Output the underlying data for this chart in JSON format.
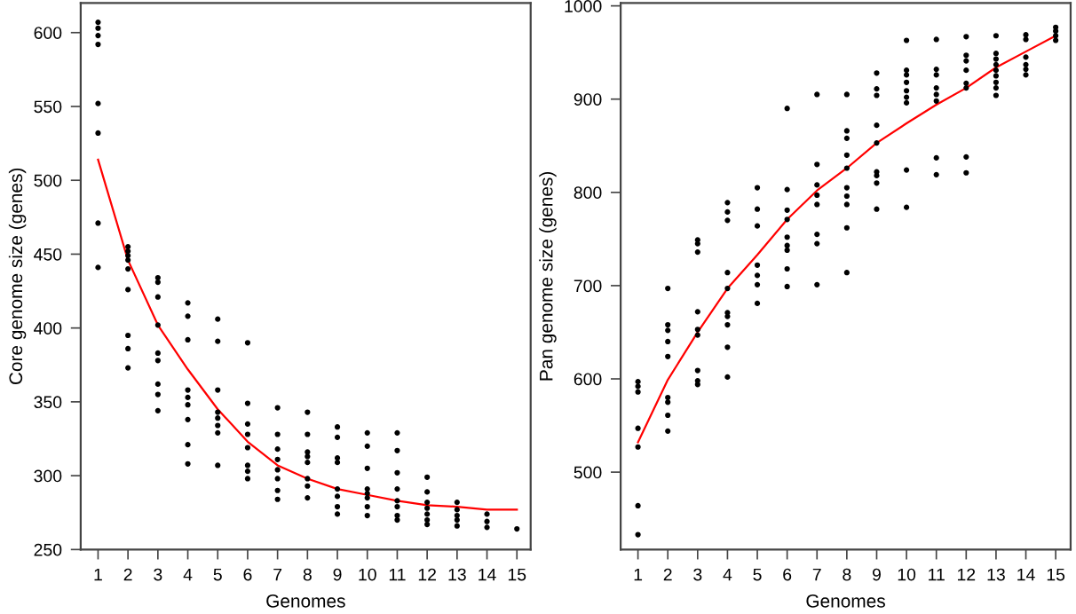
{
  "chart_data": [
    {
      "type": "scatter",
      "xlabel": "Genomes",
      "ylabel": "Core genome size (genes)",
      "xlim": [
        0.42,
        15.46
      ],
      "ylim": [
        250,
        620
      ],
      "xticks": [
        1,
        2,
        3,
        4,
        5,
        6,
        7,
        8,
        9,
        10,
        11,
        12,
        13,
        14,
        15
      ],
      "yticks": [
        250,
        300,
        350,
        400,
        450,
        500,
        550,
        600
      ],
      "grid": false,
      "legend": false,
      "marker": "circle",
      "series": [
        {
          "color": "#000000",
          "x": [
            1,
            1,
            1,
            1,
            1,
            1,
            1,
            1,
            2,
            2,
            2,
            2,
            2,
            2,
            2,
            2,
            2,
            3,
            3,
            3,
            3,
            3,
            3,
            3,
            3,
            3,
            4,
            4,
            4,
            4,
            4,
            4,
            4,
            4,
            4,
            5,
            5,
            5,
            5,
            5,
            5,
            5,
            5,
            6,
            6,
            6,
            6,
            6,
            6,
            6,
            6,
            7,
            7,
            7,
            7,
            7,
            7,
            7,
            7,
            8,
            8,
            8,
            8,
            8,
            8,
            8,
            8,
            9,
            9,
            9,
            9,
            9,
            9,
            9,
            9,
            10,
            10,
            10,
            10,
            10,
            10,
            10,
            10,
            11,
            11,
            11,
            11,
            11,
            11,
            11,
            11,
            12,
            12,
            12,
            12,
            12,
            12,
            12,
            13,
            13,
            13,
            13,
            13,
            14,
            14,
            14,
            15
          ],
          "values": [
            607,
            603,
            598,
            592,
            552,
            532,
            471,
            441,
            455,
            452,
            449,
            446,
            440,
            426,
            395,
            386,
            373,
            434,
            431,
            421,
            402,
            383,
            378,
            362,
            355,
            344,
            417,
            408,
            392,
            358,
            353,
            348,
            338,
            321,
            308,
            406,
            391,
            358,
            343,
            339,
            334,
            329,
            307,
            390,
            349,
            335,
            328,
            319,
            307,
            303,
            298,
            346,
            328,
            318,
            311,
            304,
            298,
            290,
            284,
            343,
            328,
            316,
            313,
            309,
            298,
            293,
            285,
            333,
            326,
            312,
            309,
            291,
            286,
            279,
            274,
            329,
            320,
            305,
            291,
            288,
            285,
            279,
            273,
            329,
            317,
            302,
            291,
            283,
            279,
            273,
            270,
            299,
            289,
            282,
            278,
            274,
            270,
            267,
            282,
            277,
            273,
            270,
            266,
            274,
            269,
            265,
            264
          ]
        },
        {
          "type": "line",
          "color": "#ff0000",
          "marker": "none",
          "x": [
            1,
            2,
            3,
            4,
            5,
            6,
            7,
            8,
            9,
            10,
            11,
            12,
            13,
            14,
            15
          ],
          "values": [
            514,
            446,
            402,
            372,
            345,
            323,
            307,
            298,
            291,
            287,
            283,
            280,
            279,
            277,
            277
          ]
        }
      ]
    },
    {
      "type": "scatter",
      "xlabel": "Genomes",
      "ylabel": "Pan genome size (genes)",
      "xlim": [
        0.42,
        15.5
      ],
      "ylim": [
        417,
        1003
      ],
      "xticks": [
        1,
        2,
        3,
        4,
        5,
        6,
        7,
        8,
        9,
        10,
        11,
        12,
        13,
        14,
        15
      ],
      "yticks": [
        500,
        600,
        700,
        800,
        900,
        1000
      ],
      "grid": false,
      "legend": false,
      "marker": "circle",
      "series": [
        {
          "color": "#000000",
          "x": [
            1,
            1,
            1,
            1,
            1,
            1,
            1,
            2,
            2,
            2,
            2,
            2,
            2,
            2,
            2,
            2,
            3,
            3,
            3,
            3,
            3,
            3,
            3,
            3,
            3,
            4,
            4,
            4,
            4,
            4,
            4,
            4,
            4,
            4,
            4,
            5,
            5,
            5,
            5,
            5,
            5,
            5,
            6,
            6,
            6,
            6,
            6,
            6,
            6,
            6,
            6,
            7,
            7,
            7,
            7,
            7,
            7,
            7,
            7,
            8,
            8,
            8,
            8,
            8,
            8,
            8,
            8,
            8,
            8,
            9,
            9,
            9,
            9,
            9,
            9,
            9,
            9,
            9,
            10,
            10,
            10,
            10,
            10,
            10,
            10,
            10,
            10,
            11,
            11,
            11,
            11,
            11,
            11,
            11,
            11,
            12,
            12,
            12,
            12,
            12,
            12,
            12,
            12,
            13,
            13,
            13,
            13,
            13,
            13,
            13,
            13,
            13,
            14,
            14,
            14,
            14,
            14,
            14,
            15,
            15,
            15,
            15
          ],
          "values": [
            597,
            592,
            586,
            547,
            527,
            464,
            433,
            697,
            658,
            652,
            640,
            624,
            580,
            575,
            561,
            544,
            749,
            745,
            736,
            672,
            653,
            647,
            609,
            598,
            594,
            789,
            779,
            770,
            714,
            697,
            671,
            667,
            658,
            634,
            602,
            805,
            782,
            764,
            722,
            711,
            701,
            681,
            890,
            803,
            781,
            771,
            752,
            743,
            738,
            718,
            699,
            905,
            830,
            808,
            797,
            787,
            755,
            745,
            701,
            905,
            866,
            858,
            840,
            826,
            805,
            796,
            787,
            762,
            714,
            928,
            911,
            904,
            872,
            853,
            822,
            818,
            810,
            782,
            963,
            931,
            926,
            918,
            909,
            902,
            896,
            824,
            784,
            964,
            932,
            926,
            912,
            905,
            898,
            837,
            819,
            967,
            947,
            941,
            931,
            917,
            912,
            838,
            821,
            968,
            949,
            943,
            937,
            931,
            925,
            918,
            912,
            904,
            969,
            964,
            945,
            937,
            932,
            926,
            977,
            973,
            968,
            963
          ]
        },
        {
          "type": "line",
          "color": "#ff0000",
          "marker": "none",
          "x": [
            1,
            2,
            3,
            4,
            5,
            6,
            7,
            8,
            9,
            10,
            11,
            12,
            13,
            14,
            15
          ],
          "values": [
            532,
            599,
            650,
            697,
            733,
            771,
            802,
            826,
            853,
            874,
            894,
            912,
            934,
            951,
            968
          ]
        }
      ]
    }
  ]
}
